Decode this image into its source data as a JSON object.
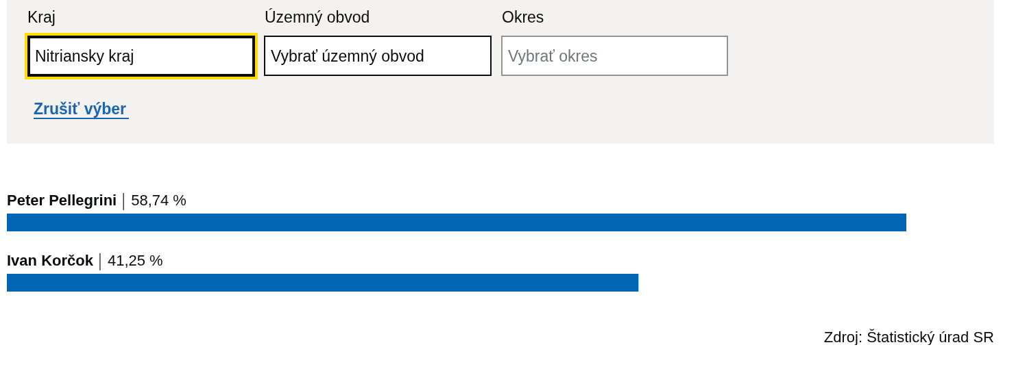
{
  "chart_data": [
    {
      "type": "other",
      "annotations": [
        "Kraj",
        "Nitriansky kraj",
        "Územný obvod",
        "Vybrať územný obvod",
        "Okres",
        "Vybrať okres",
        "Zrušiť výber"
      ]
    },
    {
      "type": "bar",
      "orientation": "horizontal",
      "categories": [
        "Peter Pellegrini",
        "Ivan Korčok"
      ],
      "values": [
        58.74,
        41.25
      ],
      "value_labels": [
        "58,74 %",
        "41,25 %"
      ],
      "color": "#0066b3",
      "tick_labels": "y",
      "annotations": [
        "Zdroj: Štatistický úrad SR"
      ]
    }
  ]
}
